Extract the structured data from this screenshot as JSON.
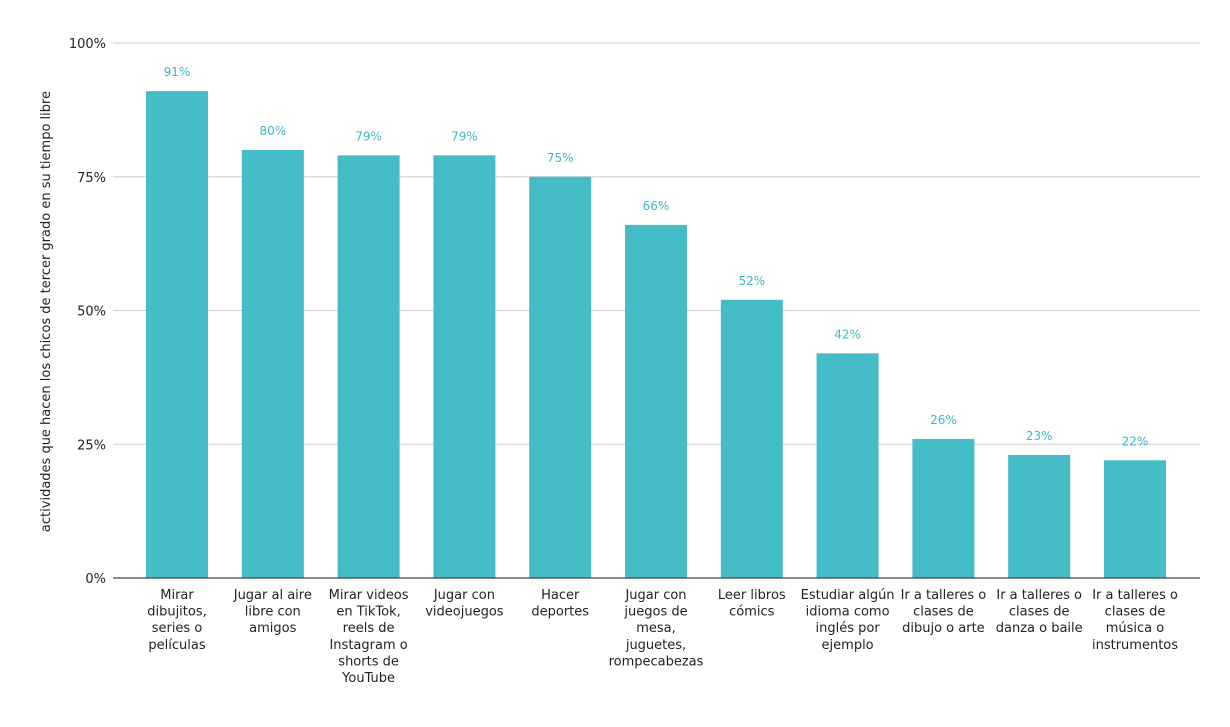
{
  "chart_data": {
    "type": "bar",
    "title": "",
    "xlabel": "",
    "ylabel": "actividades que hacen los chicos de tercer grado en su tiempo libre",
    "ylim": [
      0,
      100
    ],
    "yticks": [
      0,
      25,
      50,
      75,
      100
    ],
    "ytick_labels": [
      "0%",
      "25%",
      "50%",
      "75%",
      "100%"
    ],
    "grid": true,
    "bar_color": "#45bdc8",
    "label_color": "#3bb9c6",
    "categories": [
      [
        "Mirar",
        "dibujitos,",
        "series o",
        "películas"
      ],
      [
        "Jugar al aire",
        "libre con",
        "amigos"
      ],
      [
        "Mirar videos",
        "en TikTok,",
        "reels de",
        "Instagram o",
        "shorts de",
        "YouTube"
      ],
      [
        "Jugar con",
        "videojuegos"
      ],
      [
        "Hacer",
        "deportes"
      ],
      [
        "Jugar  con",
        "juegos de",
        "mesa,",
        "juguetes,",
        "rompecabezas"
      ],
      [
        "Leer libros",
        "cómics"
      ],
      [
        "Estudiar algún",
        "idioma como",
        "inglés por",
        "ejemplo"
      ],
      [
        "Ir a talleres o",
        "clases de",
        "dibujo o arte"
      ],
      [
        "Ir a talleres o",
        "clases de",
        "danza o baile"
      ],
      [
        "Ir a talleres o",
        "clases de",
        "música o",
        "instrumentos"
      ]
    ],
    "values": [
      91,
      80,
      79,
      79,
      75,
      66,
      52,
      42,
      26,
      23,
      22
    ],
    "data_labels": [
      "91%",
      "80%",
      "79%",
      "79%",
      "75%",
      "66%",
      "52%",
      "42%",
      "26%",
      "23%",
      "22%"
    ]
  }
}
